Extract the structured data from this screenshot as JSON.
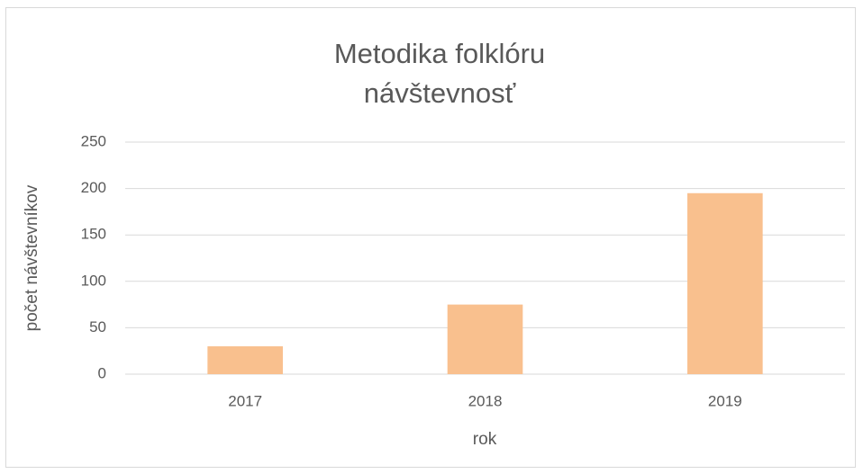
{
  "chart_data": {
    "type": "bar",
    "title": [
      "Metodika folklóru",
      "návštevnosť"
    ],
    "x_label": "rok",
    "y_label": "počet návštevníkov",
    "categories": [
      "2017",
      "2018",
      "2019"
    ],
    "values": [
      30,
      75,
      195
    ],
    "color": "#f9c08e",
    "ylim": [
      0,
      250
    ],
    "yticks": [
      0,
      50,
      100,
      150,
      200,
      250
    ],
    "grid": true
  }
}
